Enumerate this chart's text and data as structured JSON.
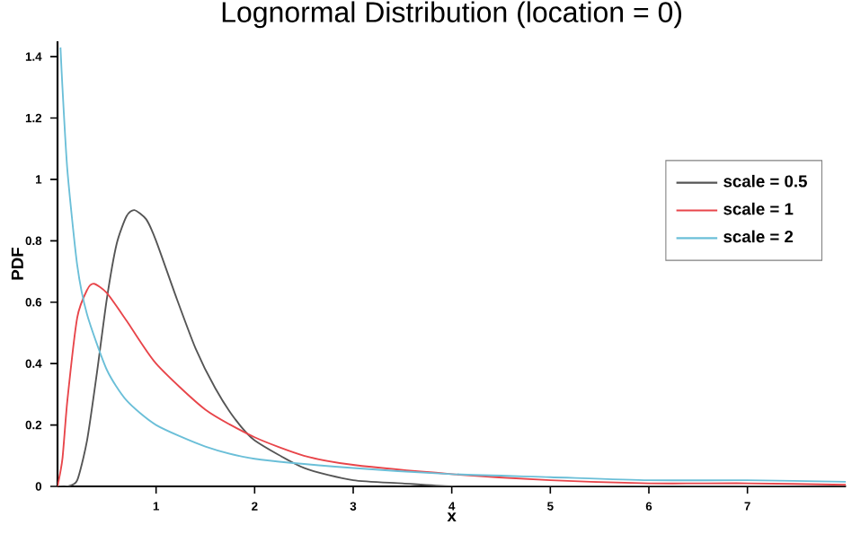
{
  "chart_data": {
    "type": "line",
    "title": "Lognormal Distribution (location = 0)",
    "xlabel": "x",
    "ylabel": "PDF",
    "xlim": [
      0,
      8
    ],
    "ylim": [
      0,
      1.45
    ],
    "xticks": [
      1,
      2,
      3,
      4,
      5,
      6,
      7
    ],
    "yticks": [
      0,
      0.2,
      0.4,
      0.6,
      0.8,
      1,
      1.2,
      1.4
    ],
    "grid": false,
    "legend": "right",
    "marker": "none",
    "line_style": "solid",
    "series": [
      {
        "name": "scale = 0.5",
        "color": "#555555",
        "x": [
          0,
          0.1,
          0.2,
          0.3,
          0.4,
          0.5,
          0.6,
          0.7,
          0.78,
          0.9,
          1.0,
          1.2,
          1.4,
          1.6,
          1.8,
          2.0,
          2.5,
          3,
          3.5,
          4,
          5,
          6,
          7,
          8
        ],
        "values": [
          0,
          0,
          0.02,
          0.15,
          0.37,
          0.61,
          0.79,
          0.88,
          0.9,
          0.87,
          0.8,
          0.62,
          0.45,
          0.32,
          0.22,
          0.15,
          0.06,
          0.02,
          0.01,
          0,
          0,
          0,
          0,
          0
        ]
      },
      {
        "name": "scale = 1",
        "color": "#e8454a",
        "x": [
          0,
          0.05,
          0.1,
          0.2,
          0.3,
          0.37,
          0.5,
          0.7,
          1,
          1.5,
          2,
          2.5,
          3,
          4,
          5,
          6,
          7,
          8
        ],
        "values": [
          0,
          0.09,
          0.28,
          0.55,
          0.64,
          0.66,
          0.63,
          0.54,
          0.4,
          0.25,
          0.16,
          0.1,
          0.07,
          0.04,
          0.02,
          0.01,
          0.01,
          0.005
        ]
      },
      {
        "name": "scale = 2",
        "color": "#6bbfd8",
        "x": [
          0.03,
          0.05,
          0.1,
          0.2,
          0.3,
          0.5,
          0.7,
          1,
          1.5,
          2,
          3,
          4,
          5,
          6,
          7,
          8
        ],
        "values": [
          1.43,
          1.3,
          1.03,
          0.72,
          0.56,
          0.38,
          0.28,
          0.2,
          0.13,
          0.09,
          0.06,
          0.04,
          0.03,
          0.02,
          0.02,
          0.015
        ]
      }
    ]
  }
}
